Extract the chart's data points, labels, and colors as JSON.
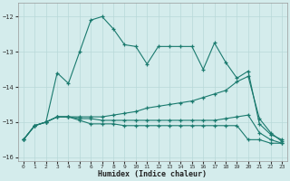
{
  "x": [
    0,
    1,
    2,
    3,
    4,
    5,
    6,
    7,
    8,
    9,
    10,
    11,
    12,
    13,
    14,
    15,
    16,
    17,
    18,
    19,
    20,
    21,
    22,
    23
  ],
  "line1": [
    -15.5,
    -15.1,
    -15.0,
    -13.6,
    -13.9,
    -13.0,
    -12.1,
    -12.0,
    -12.35,
    -12.8,
    -12.85,
    -13.35,
    -12.85,
    -12.85,
    -12.85,
    -12.85,
    -13.5,
    -12.75,
    -13.3,
    -13.75,
    -13.55,
    -15.05,
    -15.35,
    -15.5
  ],
  "line2": [
    -15.5,
    -15.1,
    -15.0,
    -14.85,
    -14.85,
    -14.85,
    -14.85,
    -14.85,
    -14.8,
    -14.75,
    -14.7,
    -14.6,
    -14.55,
    -14.5,
    -14.45,
    -14.4,
    -14.3,
    -14.2,
    -14.1,
    -13.85,
    -13.7,
    -14.9,
    -15.3,
    -15.55
  ],
  "line3": [
    -15.5,
    -15.1,
    -15.0,
    -14.85,
    -14.85,
    -14.9,
    -14.9,
    -14.95,
    -14.95,
    -14.95,
    -14.95,
    -14.95,
    -14.95,
    -14.95,
    -14.95,
    -14.95,
    -14.95,
    -14.95,
    -14.9,
    -14.85,
    -14.8,
    -15.3,
    -15.5,
    -15.6
  ],
  "line4": [
    -15.5,
    -15.1,
    -15.0,
    -14.85,
    -14.85,
    -14.95,
    -15.05,
    -15.05,
    -15.05,
    -15.1,
    -15.1,
    -15.1,
    -15.1,
    -15.1,
    -15.1,
    -15.1,
    -15.1,
    -15.1,
    -15.1,
    -15.1,
    -15.5,
    -15.5,
    -15.6,
    -15.6
  ],
  "line_color": "#1a7a6e",
  "bg_color": "#d4ecec",
  "grid_color": "#b8d8d8",
  "xlabel": "Humidex (Indice chaleur)",
  "ylim": [
    -16.1,
    -11.6
  ],
  "xlim": [
    -0.5,
    23.5
  ],
  "yticks": [
    -16,
    -15,
    -14,
    -13,
    -12
  ],
  "xticks": [
    0,
    1,
    2,
    3,
    4,
    5,
    6,
    7,
    8,
    9,
    10,
    11,
    12,
    13,
    14,
    15,
    16,
    17,
    18,
    19,
    20,
    21,
    22,
    23
  ]
}
